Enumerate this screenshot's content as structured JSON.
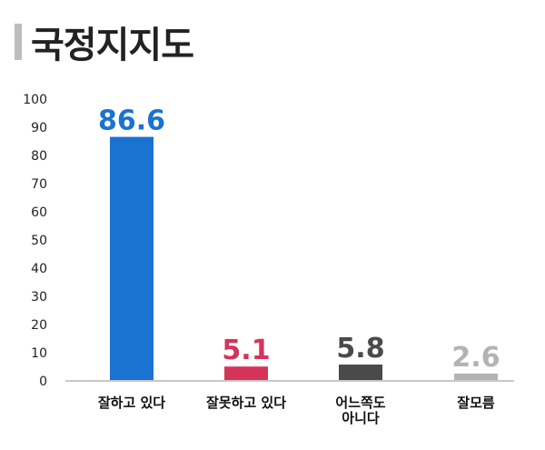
{
  "title": "국정지지도",
  "chart_data": {
    "type": "bar",
    "title": "국정지지도",
    "categories": [
      [
        "잘하고 있다"
      ],
      [
        "잘못하고 있다"
      ],
      [
        "어느쪽도",
        "아니다"
      ],
      [
        "잘모름"
      ]
    ],
    "values": [
      86.6,
      5.1,
      5.8,
      2.6
    ],
    "value_labels": [
      "86.6",
      "5.1",
      "5.8",
      "2.6"
    ],
    "colors": [
      "#1a73d0",
      "#d6335a",
      "#4a4a4a",
      "#b3b3b3"
    ],
    "ylim": [
      0,
      100
    ],
    "yticks": [
      "0",
      "10",
      "20",
      "30",
      "40",
      "50",
      "60",
      "70",
      "80",
      "90",
      "100"
    ],
    "xlabel": "",
    "ylabel": "",
    "grid": false,
    "legend": "none"
  }
}
